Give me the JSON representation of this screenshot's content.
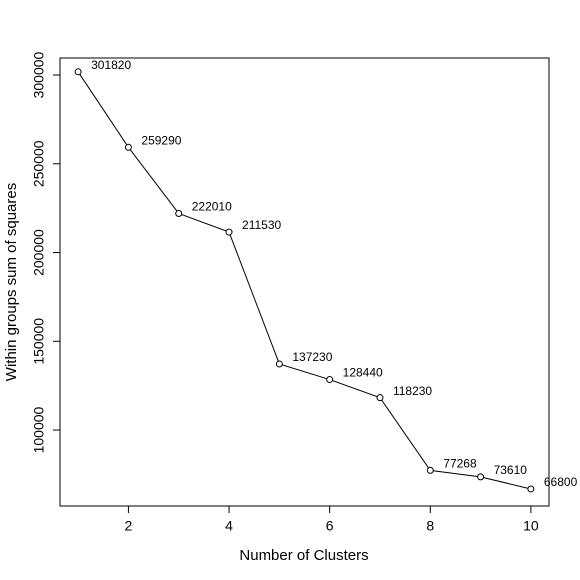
{
  "chart_data": {
    "type": "line",
    "x_label": "Number of Clusters",
    "y_label": "Within groups sum of squares",
    "x": [
      1,
      2,
      3,
      4,
      5,
      6,
      7,
      8,
      9,
      10
    ],
    "series": [
      {
        "color": "#000000",
        "values": [
          301820,
          259290,
          222010,
          211530,
          137230,
          128440,
          118230,
          77268,
          73610,
          66800
        ]
      }
    ],
    "xlim": [
      0.64,
      10.36
    ],
    "xticks": [
      2,
      4,
      6,
      8,
      10
    ],
    "ylim": [
      57200,
      309600
    ],
    "yticks": [
      100000,
      150000,
      200000,
      250000,
      300000
    ]
  }
}
